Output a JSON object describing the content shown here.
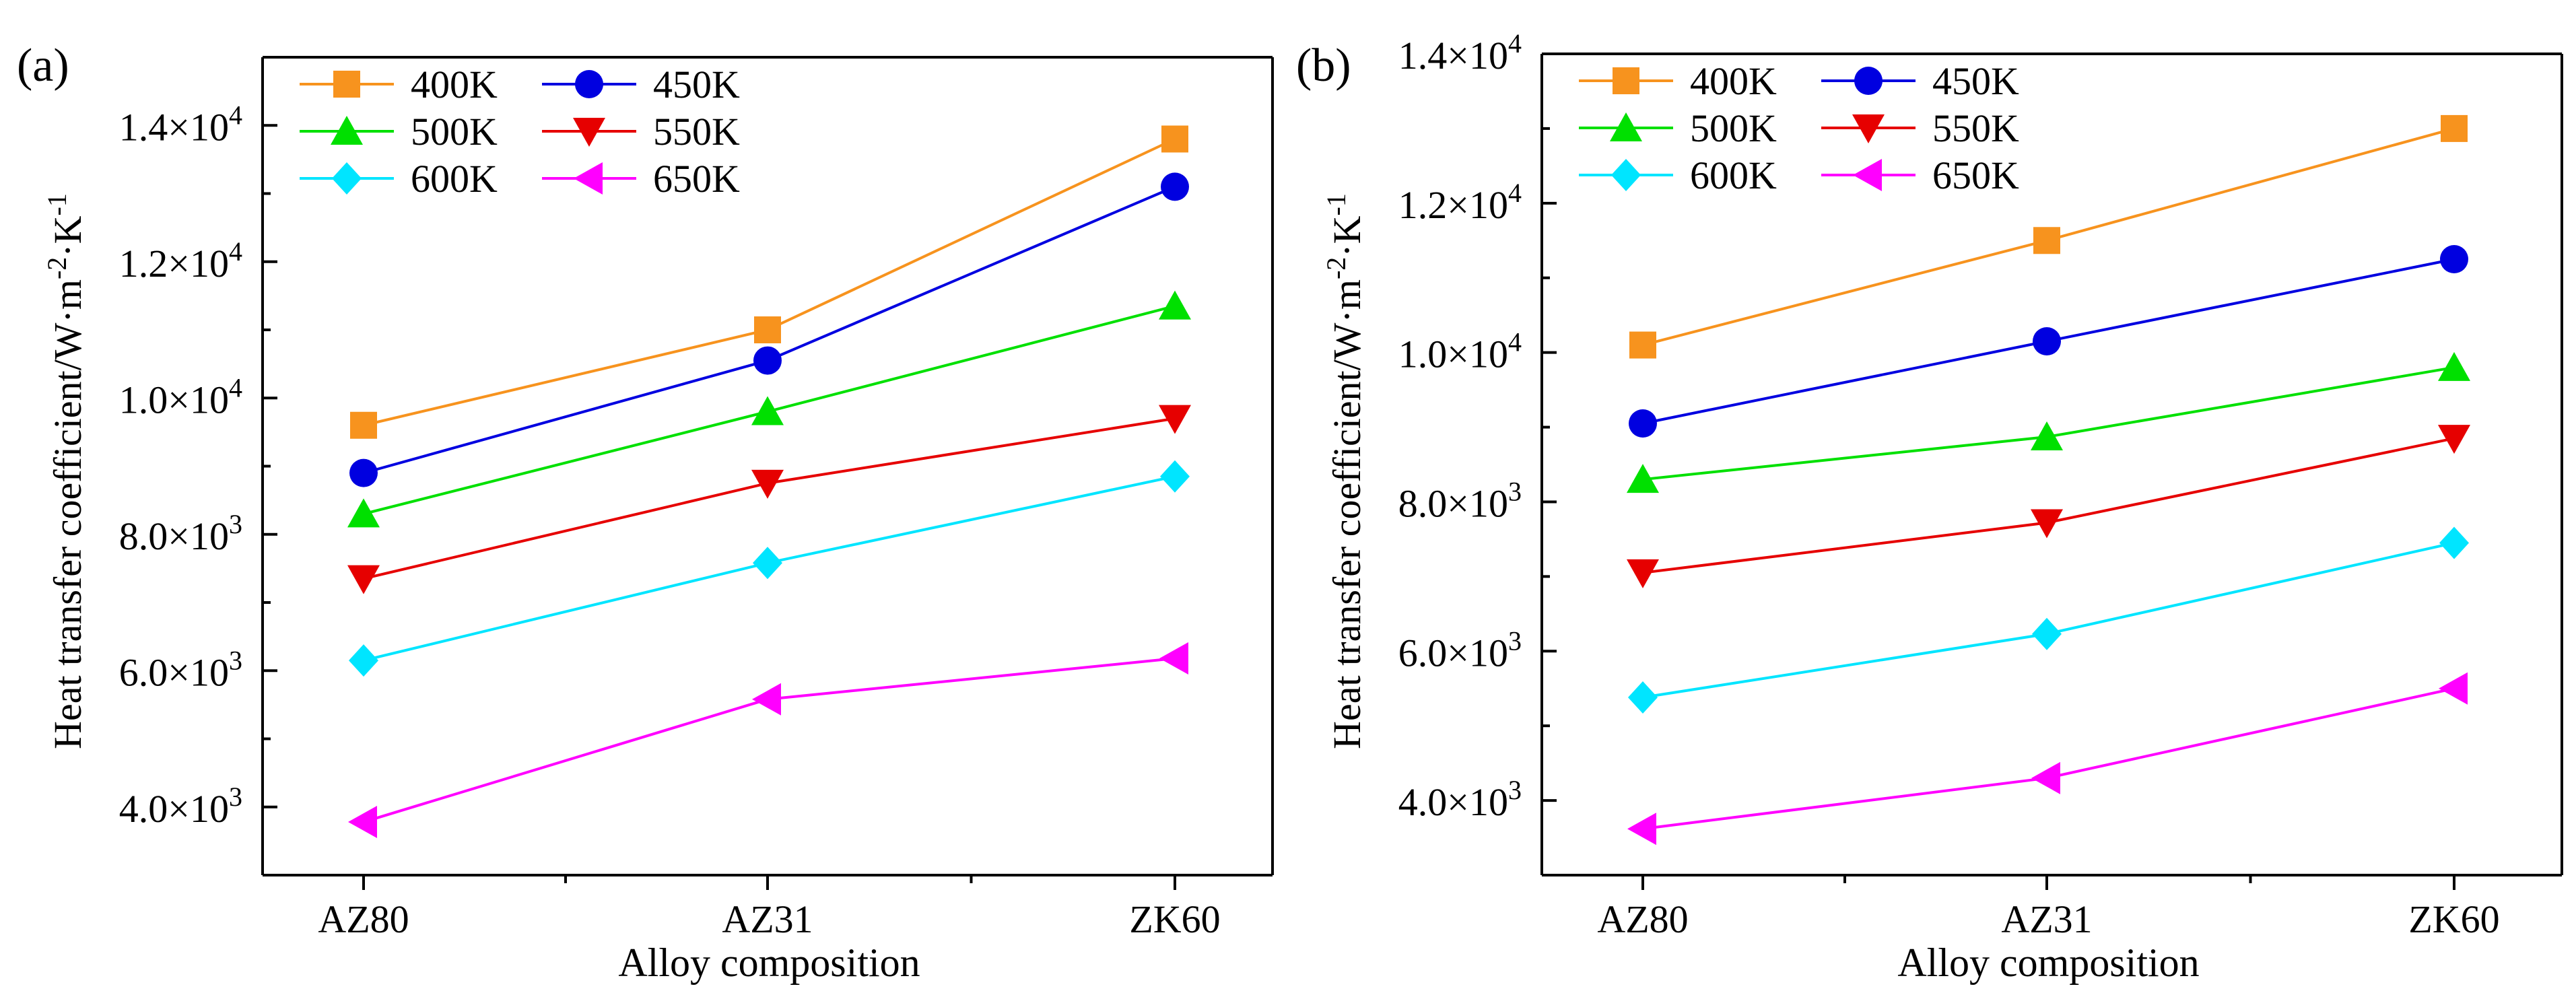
{
  "figure_caption": "",
  "chart_data": [
    {
      "panel_label": "(a)",
      "type": "line",
      "title": "",
      "xlabel": "Alloy composition",
      "ylabel": "Heat transfer coefficient/W·m",
      "ylabel_sup1": "-2",
      "ylabel_mid": "·K",
      "ylabel_sup2": "-1",
      "categories": [
        "AZ80",
        "AZ31",
        "ZK60"
      ],
      "ylim": [
        3000,
        15000
      ],
      "yticks": [
        {
          "value": 4000,
          "mant": "4.0×10",
          "exp": "3"
        },
        {
          "value": 6000,
          "mant": "6.0×10",
          "exp": "3"
        },
        {
          "value": 8000,
          "mant": "8.0×10",
          "exp": "3"
        },
        {
          "value": 10000,
          "mant": "1.0×10",
          "exp": "4"
        },
        {
          "value": 12000,
          "mant": "1.2×10",
          "exp": "4"
        },
        {
          "value": 14000,
          "mant": "1.4×10",
          "exp": "4"
        }
      ],
      "legend_position": "top-left",
      "series": [
        {
          "name": "400K",
          "color": "#f7931e",
          "marker": "square",
          "values": [
            9600,
            11000,
            13800
          ]
        },
        {
          "name": "450K",
          "color": "#0000e0",
          "marker": "circle",
          "values": [
            8900,
            10550,
            13100
          ]
        },
        {
          "name": "500K",
          "color": "#00e000",
          "marker": "triangle-up",
          "values": [
            8300,
            9800,
            11350
          ]
        },
        {
          "name": "550K",
          "color": "#e60000",
          "marker": "triangle-down",
          "values": [
            7350,
            8750,
            9700
          ]
        },
        {
          "name": "600K",
          "color": "#00e5ff",
          "marker": "diamond",
          "values": [
            6150,
            7580,
            8850
          ]
        },
        {
          "name": "650K",
          "color": "#ff00ff",
          "marker": "triangle-left",
          "values": [
            3780,
            5580,
            6180
          ]
        }
      ]
    },
    {
      "panel_label": "(b)",
      "type": "line",
      "title": "",
      "xlabel": "Alloy composition",
      "ylabel": "Heat transfer coefficient/W·m",
      "ylabel_sup1": "-2",
      "ylabel_mid": "·K",
      "ylabel_sup2": "-1",
      "categories": [
        "AZ80",
        "AZ31",
        "ZK60"
      ],
      "ylim": [
        3000,
        14000
      ],
      "yticks": [
        {
          "value": 4000,
          "mant": "4.0×10",
          "exp": "3"
        },
        {
          "value": 6000,
          "mant": "6.0×10",
          "exp": "3"
        },
        {
          "value": 8000,
          "mant": "8.0×10",
          "exp": "3"
        },
        {
          "value": 10000,
          "mant": "1.0×10",
          "exp": "4"
        },
        {
          "value": 12000,
          "mant": "1.2×10",
          "exp": "4"
        },
        {
          "value": 14000,
          "mant": "1.4×10",
          "exp": "4"
        }
      ],
      "legend_position": "top-left",
      "series": [
        {
          "name": "400K",
          "color": "#f7931e",
          "marker": "square",
          "values": [
            10100,
            11500,
            13000
          ]
        },
        {
          "name": "450K",
          "color": "#0000e0",
          "marker": "circle",
          "values": [
            9050,
            10150,
            11250
          ]
        },
        {
          "name": "500K",
          "color": "#00e000",
          "marker": "triangle-up",
          "values": [
            8300,
            8870,
            9800
          ]
        },
        {
          "name": "550K",
          "color": "#e60000",
          "marker": "triangle-down",
          "values": [
            7050,
            7720,
            8850
          ]
        },
        {
          "name": "600K",
          "color": "#00e5ff",
          "marker": "diamond",
          "values": [
            5380,
            6230,
            7450
          ]
        },
        {
          "name": "650K",
          "color": "#ff00ff",
          "marker": "triangle-left",
          "values": [
            3620,
            4300,
            5500
          ]
        }
      ]
    }
  ]
}
